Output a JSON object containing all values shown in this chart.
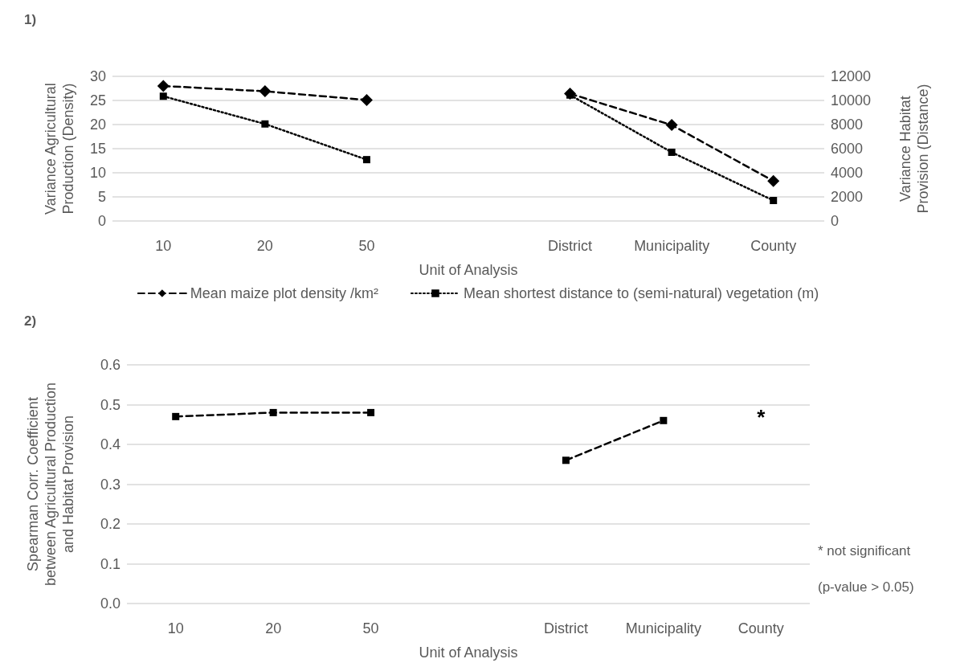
{
  "chart_data": [
    {
      "type": "line",
      "xlabel": "Unit of Analysis",
      "ylabel": "Variance Agricultural Production (Density)",
      "y2label": "Variance Habitat Provision (Distance)",
      "categories": [
        "10",
        "20",
        "50",
        null,
        "District",
        "Municipality",
        "County"
      ],
      "series": [
        {
          "name": "Mean maize plot density /km²",
          "color": "#000000",
          "marker": "diamond",
          "line_style": "dashed",
          "values": [
            28.0,
            26.9,
            25.1,
            null,
            26.4,
            19.9,
            8.3
          ]
        },
        {
          "name": "Mean shortest distance to (semi-natural) vegetation (m)",
          "color": "#000000",
          "marker": "square",
          "line_style": "dotted",
          "axis": "y2",
          "values": [
            10350,
            8050,
            5090,
            null,
            10450,
            5700,
            1700
          ]
        }
      ],
      "ylim": [
        0,
        30
      ],
      "yticks": [
        0,
        5,
        10,
        15,
        20,
        25,
        30
      ],
      "y2lim": [
        0,
        12000
      ],
      "y2ticks": [
        0,
        2000,
        4000,
        6000,
        8000,
        10000,
        12000
      ],
      "grid": "y",
      "legend": "bottom",
      "annotations": [
        "1)"
      ]
    },
    {
      "type": "line",
      "xlabel": "Unit of Analysis",
      "ylabel": "Spearman Corr. Coefficient between Agricultural Production and Habitat Provision",
      "categories": [
        "10",
        "20",
        "50",
        null,
        "District",
        "Municipality",
        "County"
      ],
      "series": [
        {
          "color": "#000000",
          "marker": "square",
          "line_style": "dashed",
          "values": [
            0.47,
            0.48,
            0.48,
            null,
            0.36,
            0.46,
            null
          ]
        }
      ],
      "ylim": [
        0,
        0.6
      ],
      "yticks": [
        {
          "value": 0,
          "label": "0.0"
        },
        {
          "value": 0.1,
          "label": "0.1"
        },
        {
          "value": 0.2,
          "label": "0.2"
        },
        {
          "value": 0.3,
          "label": "0.3"
        },
        {
          "value": 0.4,
          "label": "0.4"
        },
        {
          "value": 0.5,
          "label": "0.5"
        },
        {
          "value": 0.6,
          "label": "0.6"
        }
      ],
      "grid": "y",
      "legend": false,
      "annotations": [
        "2)",
        "*",
        "* not significant",
        "(p-value > 0.05)"
      ]
    }
  ]
}
